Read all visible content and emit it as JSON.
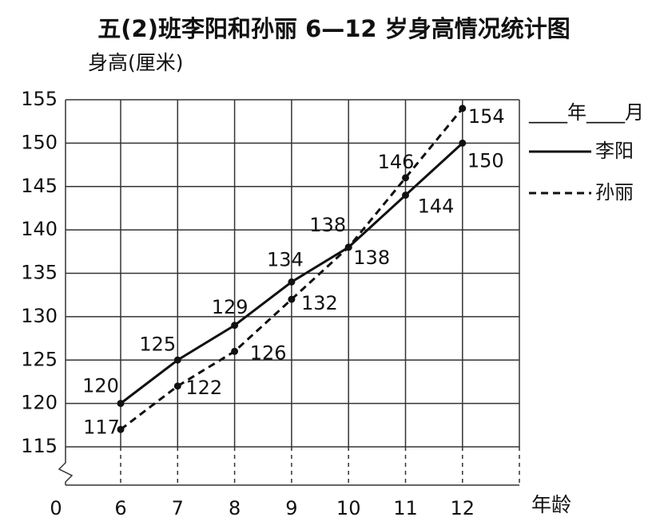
{
  "chart_data": {
    "type": "line",
    "title": "五(2)班李阳和孙丽 6—12 岁身高情况统计图",
    "y_label": "身高(厘米)",
    "x_label": "年龄",
    "axis_origin": 0,
    "legend_header": "____年____月",
    "categories": [
      "6",
      "7",
      "8",
      "9",
      "10",
      "11",
      "12"
    ],
    "series": [
      {
        "name": "李阳",
        "color": "#111111",
        "dash": false,
        "values": [
          120,
          125,
          129,
          134,
          138,
          144,
          150
        ]
      },
      {
        "name": "孙丽",
        "color": "#111111",
        "dash": true,
        "values": [
          117,
          122,
          126,
          132,
          138,
          146,
          154
        ]
      }
    ],
    "ylim": [
      115,
      155
    ],
    "yticks": [
      115,
      120,
      125,
      130,
      135,
      140,
      145,
      150,
      155
    ],
    "grid": true,
    "legend": "right"
  }
}
